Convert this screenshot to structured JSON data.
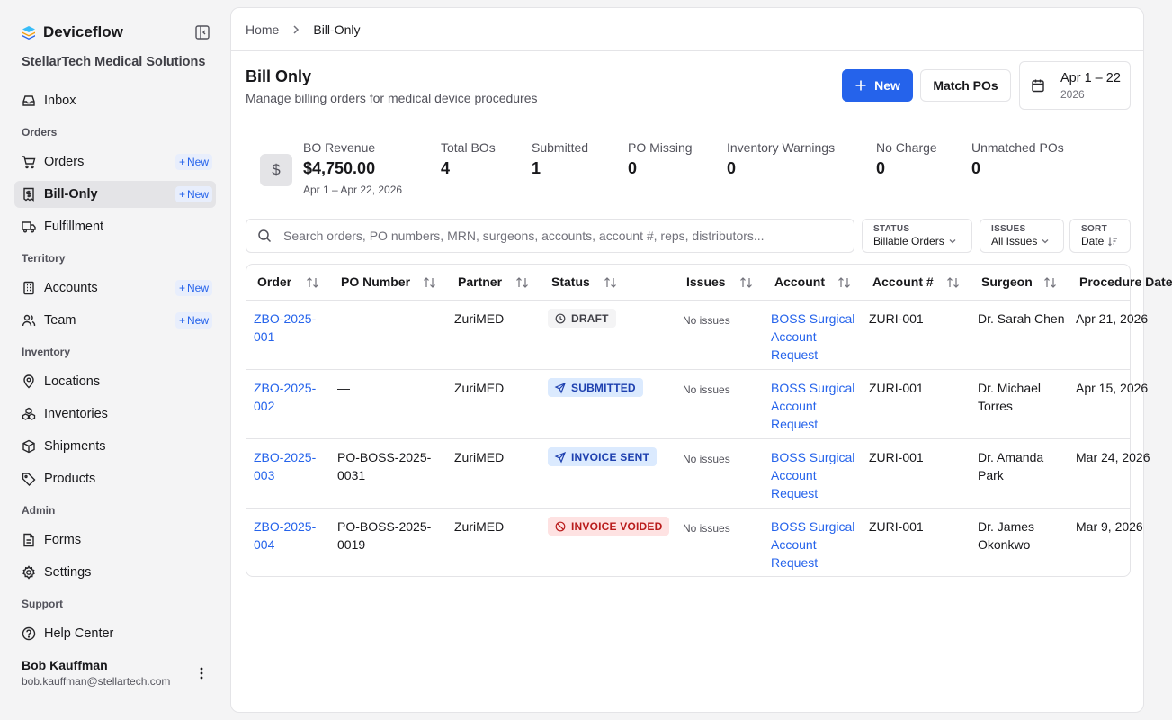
{
  "app": {
    "name": "Deviceflow",
    "org": "StellarTech Medical Solutions"
  },
  "sidebar": {
    "inbox": "Inbox",
    "sections": {
      "orders": "Orders",
      "territory": "Territory",
      "inventory": "Inventory",
      "admin": "Admin",
      "support": "Support"
    },
    "items": {
      "orders": "Orders",
      "bill_only": "Bill-Only",
      "fulfillment": "Fulfillment",
      "accounts": "Accounts",
      "team": "Team",
      "locations": "Locations",
      "inventories": "Inventories",
      "shipments": "Shipments",
      "products": "Products",
      "forms": "Forms",
      "settings": "Settings",
      "help": "Help Center"
    },
    "new_label": "New",
    "user": {
      "name": "Bob Kauffman",
      "email": "bob.kauffman@stellartech.com"
    }
  },
  "breadcrumb": {
    "home": "Home",
    "current": "Bill-Only"
  },
  "header": {
    "title": "Bill Only",
    "subtitle": "Manage billing orders for medical device procedures",
    "new_button": "New",
    "match_button": "Match POs",
    "date_range": "Apr 1 – 22",
    "date_year": "2026"
  },
  "stats": {
    "revenue": {
      "label": "BO Revenue",
      "value": "$4,750.00",
      "range": "Apr 1 – Apr 22, 2026"
    },
    "total": {
      "label": "Total BOs",
      "value": "4"
    },
    "submitted": {
      "label": "Submitted",
      "value": "1"
    },
    "po_missing": {
      "label": "PO Missing",
      "value": "0"
    },
    "inv_warnings": {
      "label": "Inventory Warnings",
      "value": "0"
    },
    "no_charge": {
      "label": "No Charge",
      "value": "0"
    },
    "unmatched": {
      "label": "Unmatched POs",
      "value": "0"
    }
  },
  "search": {
    "placeholder": "Search orders, PO numbers, MRN, surgeons, accounts, account #, reps, distributors..."
  },
  "filters": {
    "status": {
      "label": "STATUS",
      "value": "Billable Orders"
    },
    "issues": {
      "label": "ISSUES",
      "value": "All Issues"
    },
    "sort": {
      "label": "SORT",
      "value": "Date"
    }
  },
  "table": {
    "columns": {
      "order": "Order",
      "po": "PO Number",
      "partner": "Partner",
      "status": "Status",
      "issues": "Issues",
      "account": "Account",
      "account_num": "Account #",
      "surgeon": "Surgeon",
      "procedure": "Procedure Date"
    },
    "rows": [
      {
        "order1": "ZBO-2025-",
        "order2": "001",
        "po1": "—",
        "po2": "",
        "partner": "ZuriMED",
        "status": "DRAFT",
        "issues": "No issues",
        "acct1": "BOSS Surgical",
        "acct2": "Account",
        "acct3": "Request",
        "acct_num": "ZURI-001",
        "surg1": "Dr. Sarah Chen",
        "surg2": "",
        "proc": "Apr 21, 2026"
      },
      {
        "order1": "ZBO-2025-",
        "order2": "002",
        "po1": "—",
        "po2": "",
        "partner": "ZuriMED",
        "status": "SUBMITTED",
        "issues": "No issues",
        "acct1": "BOSS Surgical",
        "acct2": "Account",
        "acct3": "Request",
        "acct_num": "ZURI-001",
        "surg1": "Dr. Michael",
        "surg2": "Torres",
        "proc": "Apr 15, 2026"
      },
      {
        "order1": "ZBO-2025-",
        "order2": "003",
        "po1": "PO-BOSS-2025-",
        "po2": "0031",
        "partner": "ZuriMED",
        "status": "INVOICE SENT",
        "issues": "No issues",
        "acct1": "BOSS Surgical",
        "acct2": "Account",
        "acct3": "Request",
        "acct_num": "ZURI-001",
        "surg1": "Dr. Amanda",
        "surg2": "Park",
        "proc": "Mar 24, 2026"
      },
      {
        "order1": "ZBO-2025-",
        "order2": "004",
        "po1": "PO-BOSS-2025-",
        "po2": "0019",
        "partner": "ZuriMED",
        "status": "INVOICE VOIDED",
        "issues": "No issues",
        "acct1": "BOSS Surgical",
        "acct2": "Account",
        "acct3": "Request",
        "acct_num": "ZURI-001",
        "surg1": "Dr. James",
        "surg2": "Okonkwo",
        "proc": "Mar 9, 2026"
      }
    ]
  },
  "colors": {
    "accent": "#2563eb",
    "badge_draft": "#f4f4f5",
    "badge_submitted": "#dbeafe",
    "badge_voided": "#fee2e2"
  }
}
